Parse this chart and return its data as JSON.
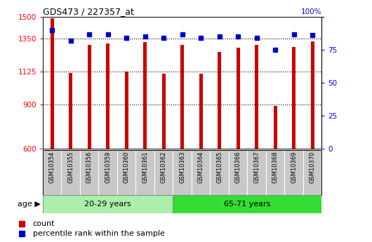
{
  "title": "GDS473 / 227357_at",
  "samples": [
    "GSM10354",
    "GSM10355",
    "GSM10356",
    "GSM10359",
    "GSM10360",
    "GSM10361",
    "GSM10362",
    "GSM10363",
    "GSM10364",
    "GSM10365",
    "GSM10366",
    "GSM10367",
    "GSM10368",
    "GSM10369",
    "GSM10370"
  ],
  "counts": [
    1490,
    1120,
    1310,
    1320,
    1125,
    1330,
    1115,
    1310,
    1115,
    1260,
    1290,
    1310,
    895,
    1295,
    1335
  ],
  "percentile_ranks": [
    90,
    82,
    87,
    87,
    84,
    85,
    84,
    87,
    84,
    85,
    85,
    84,
    75,
    87,
    86
  ],
  "group1_label": "20-29 years",
  "group2_label": "65-71 years",
  "group1_count": 7,
  "group2_count": 8,
  "ylim_left": [
    600,
    1500
  ],
  "ylim_right": [
    0,
    100
  ],
  "yticks_left": [
    600,
    900,
    1125,
    1350,
    1500
  ],
  "yticks_right": [
    0,
    25,
    50,
    75,
    100
  ],
  "bar_color": "#cc0000",
  "dot_color": "#0000cc",
  "group1_bg": "#aaf0aa",
  "group2_bg": "#33dd33",
  "xlabel_bg": "#c8c8c8",
  "legend_bar_label": "count",
  "legend_dot_label": "percentile rank within the sample",
  "bar_width": 0.18
}
